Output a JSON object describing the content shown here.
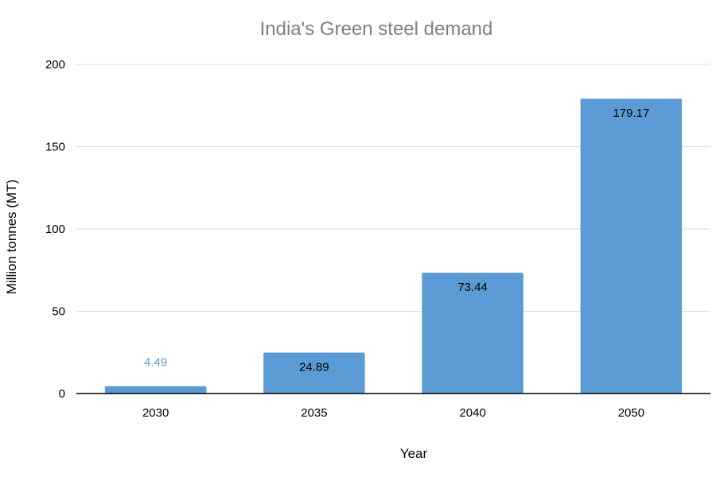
{
  "chart_data": {
    "type": "bar",
    "title": "India's Green steel demand",
    "xlabel": "Year",
    "ylabel": "Million tonnes (MT)",
    "categories": [
      "2030",
      "2035",
      "2040",
      "2050"
    ],
    "values": [
      4.49,
      24.89,
      73.44,
      179.17
    ],
    "data_labels": [
      "4.49",
      "24.89",
      "73.44",
      "179.17"
    ],
    "ylim": [
      0,
      200
    ],
    "yticks": [
      0,
      50,
      100,
      150,
      200
    ],
    "ytick_labels": [
      "0",
      "50",
      "100",
      "150",
      "200"
    ],
    "grid": true,
    "legend": "none"
  },
  "colors": {
    "bar": "#5b9bd5",
    "title": "#7f7f7f",
    "gridline": "#d9d9d9",
    "label_inside": "#000000",
    "label_outside": "#5b9bd5"
  }
}
